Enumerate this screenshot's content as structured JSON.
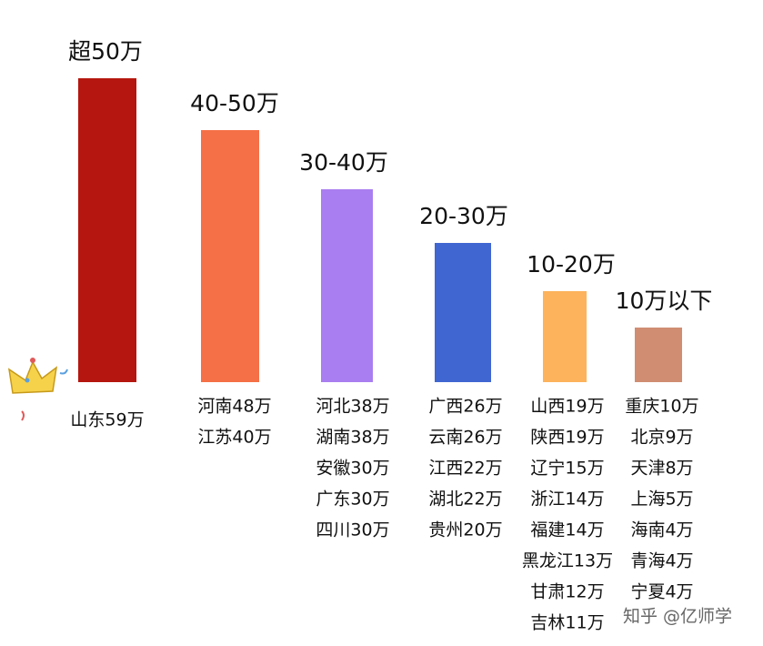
{
  "groups": [
    {
      "label": "超50万",
      "provinces": [
        "山东59万"
      ]
    },
    {
      "label": "40-50万",
      "provinces": [
        "河南48万",
        "江苏40万"
      ]
    },
    {
      "label": "30-40万",
      "provinces": [
        "河北38万",
        "湖南38万",
        "安徽30万",
        "广东30万",
        "四川30万"
      ]
    },
    {
      "label": "20-30万",
      "provinces": [
        "广西26万",
        "云南26万",
        "江西22万",
        "湖北22万",
        "贵州20万"
      ]
    },
    {
      "label": "10-20万",
      "provinces": [
        "山西19万",
        "陕西19万",
        "辽宁15万",
        "浙江14万",
        "福建14万",
        "黑龙江13万",
        "甘肃12万",
        "吉林11万"
      ]
    },
    {
      "label": "10万以下",
      "provinces": [
        "重庆10万",
        "北京9万",
        "天津8万",
        "上海5万",
        "海南4万",
        "青海4万",
        "宁夏4万"
      ]
    }
  ],
  "watermark": "知乎 @亿师学"
}
